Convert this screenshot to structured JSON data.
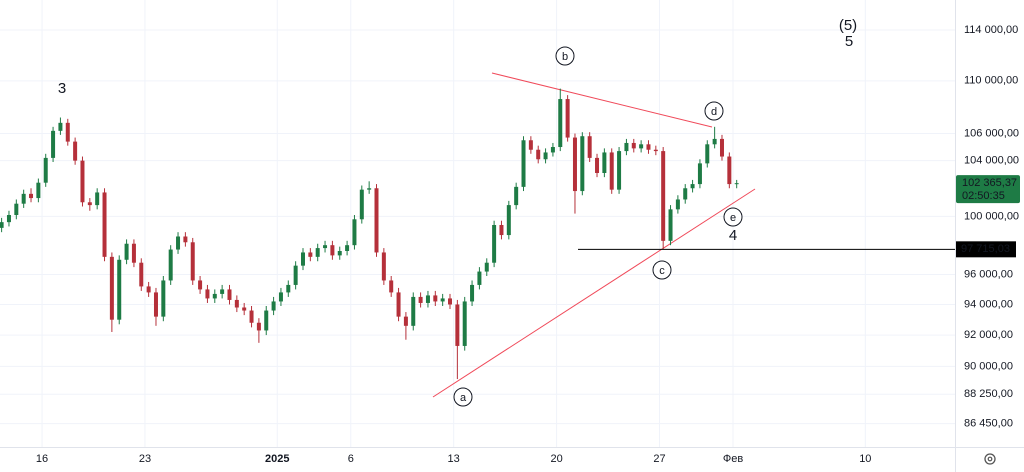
{
  "chart_data": {
    "type": "candlestick",
    "log_scale": true,
    "grid": true,
    "up_color": "#1e7b45",
    "down_color": "#b5303a",
    "x": [
      13.25,
      13.75,
      14.25,
      14.75,
      15.25,
      15.75,
      16.25,
      16.75,
      17.25,
      17.75,
      18.25,
      18.75,
      19.25,
      19.75,
      20.25,
      20.75,
      21.25,
      21.75,
      22.25,
      22.75,
      23.25,
      23.75,
      24.25,
      24.75,
      25.25,
      25.75,
      26.25,
      26.75,
      27.25,
      27.75,
      28.25,
      28.75,
      29.25,
      29.75,
      30.25,
      30.75,
      31.25,
      31.75,
      32.25,
      32.75,
      33.25,
      33.75,
      34.25,
      34.75,
      35.25,
      35.75,
      36.25,
      36.75,
      37.25,
      37.75,
      38.25,
      38.75,
      39.25,
      39.75,
      40.25,
      40.75,
      41.25,
      41.75,
      42.25,
      42.75,
      43.25,
      43.75,
      44.25,
      44.75,
      45.25,
      45.75,
      46.25,
      46.75,
      47.25,
      47.75,
      48.25,
      48.75,
      49.25,
      49.75,
      50.25,
      50.75,
      51.25,
      51.75,
      52.25,
      52.75,
      53.25,
      53.75,
      54.25,
      54.75,
      55.25,
      55.75,
      56.25,
      56.75,
      57.25,
      57.75,
      58.25,
      58.75,
      59.25,
      59.75,
      60.25,
      60.75,
      61.25,
      61.75,
      62.25,
      62.75,
      63.25
    ],
    "open": [
      99200,
      99600,
      100100,
      100900,
      101600,
      101300,
      102400,
      104200,
      106200,
      106800,
      105400,
      104000,
      101000,
      100800,
      101700,
      97200,
      93000,
      97000,
      98100,
      96800,
      95200,
      94800,
      93200,
      95600,
      97700,
      98600,
      98200,
      95600,
      95000,
      94400,
      94700,
      95000,
      94300,
      93800,
      93600,
      92800,
      92300,
      93600,
      94200,
      94800,
      95300,
      96600,
      97500,
      97200,
      97800,
      98000,
      97300,
      97600,
      98000,
      99800,
      101900,
      102000,
      97500,
      95600,
      94800,
      93200,
      92600,
      94500,
      94100,
      94600,
      94200,
      94400,
      94000,
      91300,
      94200,
      95300,
      96200,
      96800,
      99400,
      98700,
      100800,
      102100,
      105500,
      104800,
      104100,
      104600,
      105000,
      108600,
      105700,
      101800,
      105800,
      104200,
      103100,
      104600,
      101900,
      104700,
      105300,
      104900,
      105200,
      104800,
      104700,
      98300,
      100500,
      101200,
      102000,
      102300,
      103800,
      105200,
      105600,
      104300,
      102300
    ],
    "high": [
      99900,
      100400,
      101200,
      101900,
      102000,
      102700,
      104500,
      106500,
      107200,
      107100,
      105700,
      104300,
      101300,
      102000,
      102000,
      97500,
      97300,
      98400,
      98400,
      97100,
      95500,
      95100,
      95900,
      98000,
      98900,
      98900,
      98500,
      95900,
      95300,
      95000,
      95300,
      95300,
      94600,
      94100,
      93900,
      93100,
      93900,
      94500,
      95100,
      95600,
      96900,
      97800,
      97800,
      98100,
      98300,
      98300,
      97900,
      98300,
      100100,
      102200,
      102500,
      102300,
      97800,
      95900,
      95100,
      93500,
      94800,
      94800,
      94900,
      94900,
      94700,
      94700,
      94300,
      94500,
      95600,
      96500,
      97100,
      99700,
      99700,
      101100,
      102400,
      105800,
      105800,
      105100,
      104900,
      105300,
      109400,
      108900,
      106000,
      106100,
      106100,
      104500,
      104900,
      104900,
      105000,
      105600,
      105600,
      105500,
      105500,
      105100,
      105000,
      100800,
      101500,
      102300,
      102600,
      104100,
      105500,
      106500,
      105900,
      104600,
      102600
    ],
    "low": [
      98900,
      99300,
      99800,
      100600,
      101000,
      101000,
      102100,
      103900,
      105900,
      105100,
      103700,
      100700,
      100400,
      100500,
      96900,
      92200,
      92700,
      96700,
      96500,
      94900,
      94500,
      92600,
      92900,
      95300,
      97400,
      97900,
      95300,
      94700,
      94100,
      94100,
      94400,
      94000,
      93500,
      93300,
      92500,
      91500,
      92000,
      93300,
      93900,
      94500,
      95000,
      96300,
      96900,
      96900,
      97500,
      97000,
      97000,
      97300,
      97700,
      99500,
      101600,
      97200,
      95300,
      94500,
      92900,
      91700,
      92300,
      93800,
      93800,
      93900,
      93900,
      93700,
      89200,
      91000,
      93900,
      95000,
      95900,
      96500,
      98400,
      98400,
      100500,
      101800,
      104500,
      103800,
      103800,
      104300,
      104700,
      105400,
      100200,
      101500,
      103900,
      102800,
      102800,
      101600,
      101600,
      104400,
      104600,
      104600,
      104500,
      104400,
      97700,
      98000,
      100200,
      100900,
      101700,
      102000,
      103500,
      104900,
      104000,
      102000,
      102000
    ],
    "close": [
      99600,
      100100,
      100900,
      101600,
      101300,
      102400,
      104200,
      106200,
      106800,
      105400,
      104000,
      101000,
      100800,
      101700,
      97200,
      93000,
      97000,
      98100,
      96800,
      95200,
      94800,
      93200,
      95600,
      97700,
      98600,
      98200,
      95600,
      95000,
      94400,
      94700,
      95000,
      94300,
      93800,
      93600,
      92800,
      92300,
      93600,
      94200,
      94800,
      95300,
      96600,
      97500,
      97200,
      97800,
      98000,
      97300,
      97600,
      98000,
      99800,
      101900,
      102000,
      97500,
      95600,
      94800,
      93200,
      92600,
      94500,
      94100,
      94600,
      94200,
      94400,
      94000,
      91300,
      94200,
      95300,
      96200,
      96800,
      99400,
      98700,
      100800,
      102100,
      105500,
      104800,
      104100,
      104600,
      105000,
      108600,
      105700,
      101800,
      105800,
      104200,
      103100,
      104600,
      101900,
      104700,
      105300,
      104900,
      105200,
      104800,
      104700,
      98300,
      100500,
      101200,
      102000,
      102300,
      103800,
      105200,
      105600,
      104300,
      102300,
      102365.37
    ],
    "xlim": [
      13.14,
      78.1
    ],
    "xticks": [
      {
        "value": 16,
        "label": "16"
      },
      {
        "value": 23,
        "label": "23"
      },
      {
        "value": 32,
        "label": "2025"
      },
      {
        "value": 37,
        "label": "6"
      },
      {
        "value": 44,
        "label": "13"
      },
      {
        "value": 51,
        "label": "20"
      },
      {
        "value": 58,
        "label": "27"
      },
      {
        "value": 63,
        "label": "Фев"
      },
      {
        "value": 72,
        "label": "10"
      }
    ],
    "ylim": [
      85040,
      116430
    ],
    "yticks": [
      {
        "value": 114000,
        "label": "114 000,00"
      },
      {
        "value": 110000,
        "label": "110 000,00"
      },
      {
        "value": 106000,
        "label": "106 000,00"
      },
      {
        "value": 104000,
        "label": "104 000,00"
      },
      {
        "value": 100000,
        "label": "100 000,00"
      },
      {
        "value": 96000,
        "label": "96 000,00"
      },
      {
        "value": 94000,
        "label": "94 000,00"
      },
      {
        "value": 92000,
        "label": "92 000,00"
      },
      {
        "value": 90000,
        "label": "90 000,00"
      },
      {
        "value": 88250,
        "label": "88 250,00"
      },
      {
        "value": 86450,
        "label": "86 450,00"
      }
    ],
    "last_price": {
      "value": 102365.37,
      "label": "102 365,37",
      "countdown": "02:50:35"
    },
    "price_line": {
      "value": 97715.03,
      "label": "97 715,03"
    },
    "annotations": [
      "3",
      "b",
      "d",
      "e",
      "4",
      "c",
      "a",
      "(5)",
      "5"
    ]
  }
}
